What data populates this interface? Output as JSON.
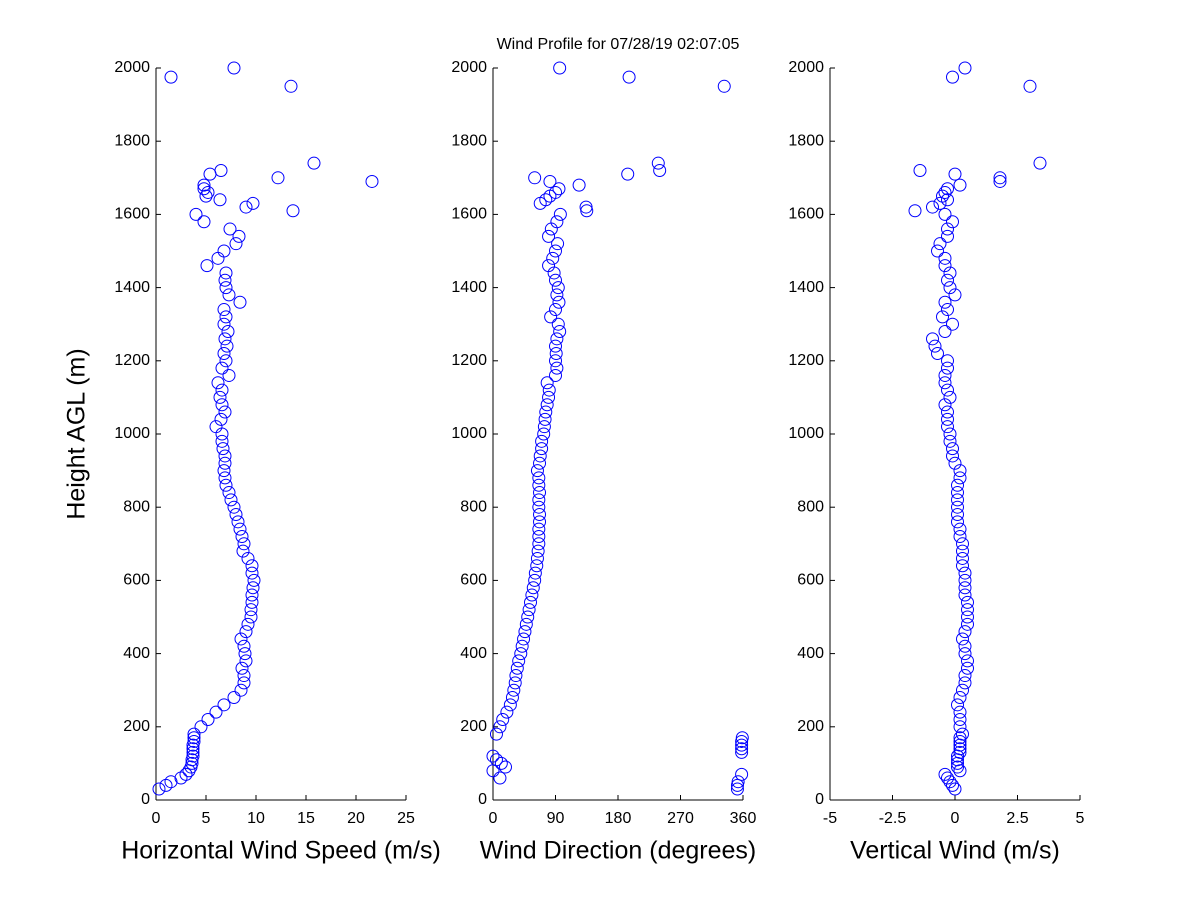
{
  "title": "Wind Profile for  07/28/19 02:07:05",
  "chart_data": [
    {
      "type": "scatter",
      "xlabel": "Horizontal Wind Speed (m/s)",
      "ylabel": "Height AGL (m)",
      "color": "#0000ff",
      "xlim": [
        0,
        25
      ],
      "xticks": [
        0,
        5,
        10,
        15,
        20,
        25
      ],
      "ylim": [
        0,
        2000
      ],
      "yticks": [
        0,
        200,
        400,
        600,
        800,
        1000,
        1200,
        1400,
        1600,
        1800,
        2000
      ],
      "x": [
        0.3,
        1.0,
        1.5,
        2.5,
        3.0,
        3.3,
        3.5,
        3.6,
        3.6,
        3.7,
        3.7,
        3.7,
        3.7,
        3.8,
        3.8,
        3.8,
        4.5,
        5.2,
        6.0,
        6.8,
        7.8,
        8.5,
        8.8,
        8.8,
        8.6,
        9.0,
        8.9,
        8.8,
        8.5,
        9.0,
        9.2,
        9.5,
        9.5,
        9.6,
        9.6,
        9.7,
        9.8,
        9.6,
        9.6,
        9.2,
        8.7,
        8.8,
        8.6,
        8.4,
        8.2,
        8.0,
        7.8,
        7.5,
        7.3,
        7.0,
        6.9,
        6.8,
        6.9,
        6.9,
        6.7,
        6.6,
        6.6,
        6.0,
        6.5,
        6.9,
        6.6,
        6.4,
        6.6,
        6.2,
        7.3,
        6.6,
        7.0,
        6.8,
        7.1,
        6.9,
        7.2,
        6.8,
        7.0,
        6.8,
        8.4,
        7.3,
        7.0,
        6.9,
        7.0,
        5.1,
        6.2,
        6.8,
        8.0,
        8.3,
        7.4,
        4.8,
        4.0,
        13.7,
        9.0,
        9.7,
        6.4,
        5.0,
        5.2,
        4.8,
        4.8,
        21.6,
        12.2,
        5.4,
        6.5,
        15.8,
        13.5,
        1.5,
        7.8
      ],
      "y": [
        30,
        40,
        50,
        60,
        70,
        80,
        90,
        100,
        110,
        120,
        130,
        140,
        150,
        160,
        170,
        180,
        200,
        220,
        240,
        260,
        280,
        300,
        320,
        340,
        360,
        380,
        400,
        420,
        440,
        460,
        480,
        500,
        520,
        540,
        560,
        580,
        600,
        620,
        640,
        660,
        680,
        700,
        720,
        740,
        760,
        780,
        800,
        820,
        840,
        860,
        880,
        900,
        920,
        940,
        960,
        980,
        1000,
        1020,
        1040,
        1060,
        1080,
        1100,
        1120,
        1140,
        1160,
        1180,
        1200,
        1220,
        1240,
        1260,
        1280,
        1300,
        1320,
        1340,
        1360,
        1380,
        1400,
        1420,
        1440,
        1460,
        1480,
        1500,
        1520,
        1540,
        1560,
        1580,
        1600,
        1610,
        1620,
        1630,
        1640,
        1650,
        1660,
        1670,
        1680,
        1690,
        1700,
        1710,
        1720,
        1740,
        1950,
        1975,
        2000
      ]
    },
    {
      "type": "scatter",
      "xlabel": "Wind Direction (degrees)",
      "color": "#0000ff",
      "xlim": [
        0,
        360
      ],
      "xticks": [
        0,
        90,
        180,
        270,
        360
      ],
      "ylim": [
        0,
        2000
      ],
      "yticks": [
        0,
        200,
        400,
        600,
        800,
        1000,
        1200,
        1400,
        1600,
        1800,
        2000
      ],
      "x": [
        352,
        352,
        353,
        10,
        358,
        0,
        18,
        12,
        5,
        0,
        358,
        358,
        358,
        358,
        359,
        5,
        10,
        14,
        20,
        25,
        28,
        30,
        32,
        33,
        35,
        37,
        40,
        42,
        44,
        46,
        48,
        50,
        52,
        54,
        56,
        58,
        60,
        61,
        63,
        64,
        65,
        66,
        66,
        66,
        67,
        67,
        66,
        66,
        67,
        66,
        66,
        64,
        67,
        68,
        70,
        70,
        73,
        74,
        75,
        76,
        78,
        80,
        81,
        78,
        90,
        92,
        90,
        91,
        90,
        92,
        96,
        94,
        83,
        90,
        95,
        92,
        94,
        90,
        88,
        80,
        86,
        90,
        93,
        80,
        84,
        92,
        97,
        135,
        134,
        68,
        76,
        82,
        90,
        95,
        124,
        82,
        60,
        194,
        240,
        238,
        333,
        196,
        96
      ],
      "y": [
        30,
        40,
        50,
        60,
        70,
        80,
        90,
        100,
        110,
        120,
        130,
        140,
        150,
        160,
        170,
        180,
        200,
        220,
        240,
        260,
        280,
        300,
        320,
        340,
        360,
        380,
        400,
        420,
        440,
        460,
        480,
        500,
        520,
        540,
        560,
        580,
        600,
        620,
        640,
        660,
        680,
        700,
        720,
        740,
        760,
        780,
        800,
        820,
        840,
        860,
        880,
        900,
        920,
        940,
        960,
        980,
        1000,
        1020,
        1040,
        1060,
        1080,
        1100,
        1120,
        1140,
        1160,
        1180,
        1200,
        1220,
        1240,
        1260,
        1280,
        1300,
        1320,
        1340,
        1360,
        1380,
        1400,
        1420,
        1440,
        1460,
        1480,
        1500,
        1520,
        1540,
        1560,
        1580,
        1600,
        1610,
        1620,
        1630,
        1640,
        1650,
        1660,
        1670,
        1680,
        1690,
        1700,
        1710,
        1720,
        1740,
        1950,
        1975,
        2000
      ]
    },
    {
      "type": "scatter",
      "xlabel": "Vertical Wind (m/s)",
      "color": "#0000ff",
      "xlim": [
        -5,
        5
      ],
      "xticks": [
        -5,
        -2.5,
        0,
        2.5,
        5
      ],
      "ylim": [
        0,
        2000
      ],
      "yticks": [
        0,
        200,
        400,
        600,
        800,
        1000,
        1200,
        1400,
        1600,
        1800,
        2000
      ],
      "x": [
        0.0,
        -0.1,
        -0.2,
        -0.3,
        -0.4,
        0.2,
        0.1,
        0.1,
        0.1,
        0.1,
        0.2,
        0.2,
        0.2,
        0.2,
        0.2,
        0.3,
        0.2,
        0.2,
        0.2,
        0.1,
        0.2,
        0.3,
        0.4,
        0.4,
        0.5,
        0.5,
        0.4,
        0.4,
        0.3,
        0.4,
        0.5,
        0.5,
        0.5,
        0.5,
        0.4,
        0.4,
        0.4,
        0.4,
        0.3,
        0.3,
        0.3,
        0.3,
        0.2,
        0.2,
        0.1,
        0.1,
        0.1,
        0.1,
        0.1,
        0.1,
        0.2,
        0.2,
        0.0,
        -0.1,
        -0.1,
        -0.2,
        -0.2,
        -0.3,
        -0.3,
        -0.3,
        -0.4,
        -0.2,
        -0.3,
        -0.4,
        -0.4,
        -0.3,
        -0.3,
        -0.7,
        -0.8,
        -0.9,
        -0.4,
        -0.1,
        -0.5,
        -0.3,
        -0.4,
        0.0,
        -0.2,
        -0.3,
        -0.2,
        -0.4,
        -0.4,
        -0.7,
        -0.6,
        -0.3,
        -0.3,
        -0.1,
        -0.4,
        -1.6,
        -0.9,
        -0.6,
        -0.3,
        -0.5,
        -0.4,
        -0.3,
        0.2,
        1.8,
        1.8,
        0.0,
        -1.4,
        3.4,
        3.0,
        -0.1,
        0.4
      ],
      "y": [
        30,
        40,
        50,
        60,
        70,
        80,
        90,
        100,
        110,
        120,
        130,
        140,
        150,
        160,
        170,
        180,
        200,
        220,
        240,
        260,
        280,
        300,
        320,
        340,
        360,
        380,
        400,
        420,
        440,
        460,
        480,
        500,
        520,
        540,
        560,
        580,
        600,
        620,
        640,
        660,
        680,
        700,
        720,
        740,
        760,
        780,
        800,
        820,
        840,
        860,
        880,
        900,
        920,
        940,
        960,
        980,
        1000,
        1020,
        1040,
        1060,
        1080,
        1100,
        1120,
        1140,
        1160,
        1180,
        1200,
        1220,
        1240,
        1260,
        1280,
        1300,
        1320,
        1340,
        1360,
        1380,
        1400,
        1420,
        1440,
        1460,
        1480,
        1500,
        1520,
        1540,
        1560,
        1580,
        1600,
        1610,
        1620,
        1630,
        1640,
        1650,
        1660,
        1670,
        1680,
        1690,
        1700,
        1710,
        1720,
        1740,
        1950,
        1975,
        2000
      ]
    }
  ]
}
